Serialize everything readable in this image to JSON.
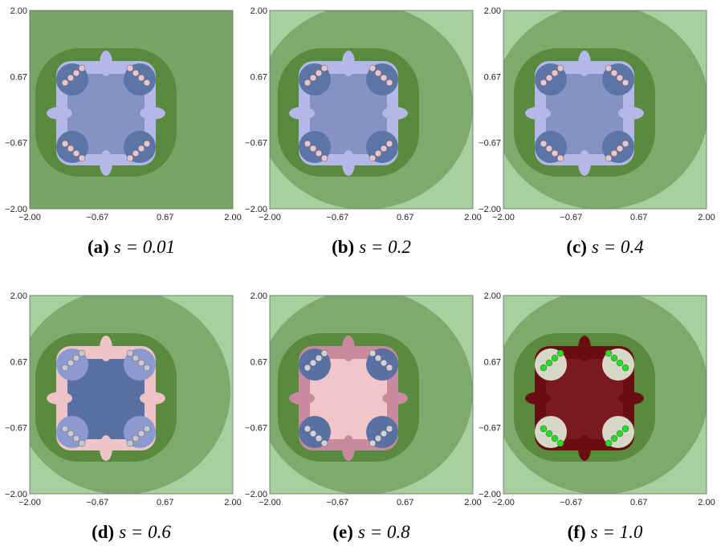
{
  "axes": {
    "xticks": [
      "−2.00",
      "−0.67",
      "0.67",
      "2.00"
    ],
    "yticks": [
      "−2.00",
      "−0.67",
      "0.67",
      "2.00"
    ]
  },
  "panels": [
    {
      "label": "(a)",
      "text": "s = 0.01"
    },
    {
      "label": "(b)",
      "text": "s = 0.2"
    },
    {
      "label": "(c)",
      "text": "s = 0.4"
    },
    {
      "label": "(d)",
      "text": "s = 0.6"
    },
    {
      "label": "(e)",
      "text": "s = 0.8"
    },
    {
      "label": "(f)",
      "text": "s = 1.0"
    }
  ]
}
